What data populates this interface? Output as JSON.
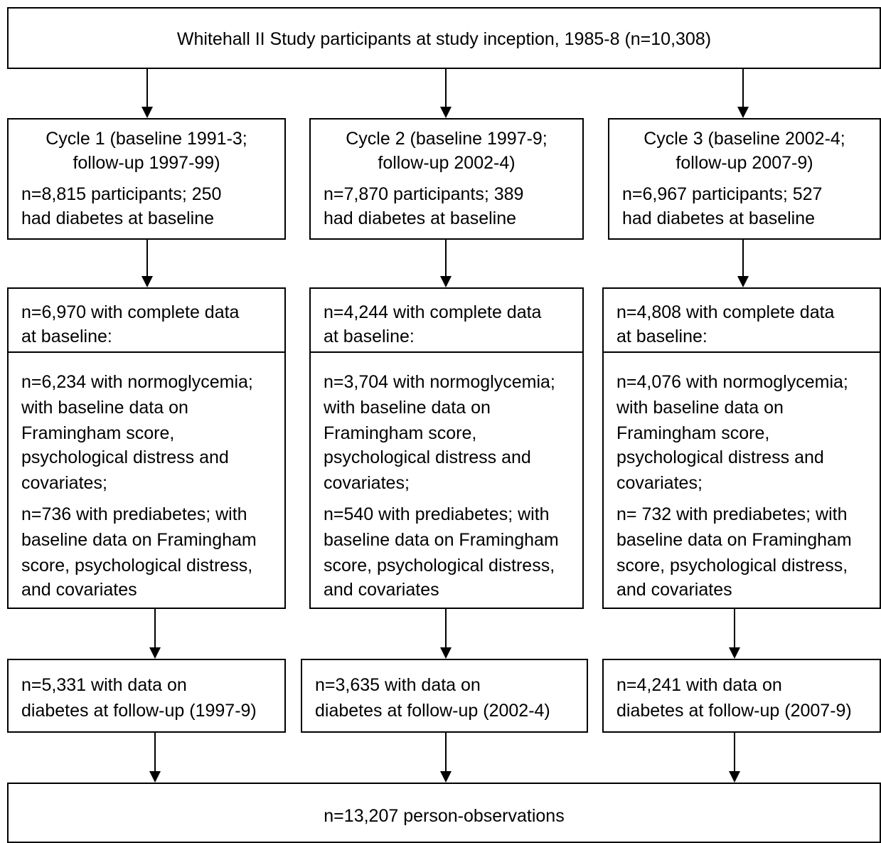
{
  "top": "Whitehall II Study participants at study inception, 1985-8 (n=10,308)",
  "columns": [
    {
      "cycle_l1": "Cycle 1 (baseline 1991-3;",
      "cycle_l2": "follow-up 1997-99)",
      "n_l1": "n=8,815 participants; 250",
      "n_l2": "had diabetes at baseline",
      "comp_l1": "n=6,970 with complete data",
      "comp_l2": "at baseline:",
      "normo_l1": "n=6,234 with normoglycemia;",
      "normo_l2": "with baseline data on",
      "normo_l3": "Framingham score,",
      "normo_l4": "psychological distress and",
      "normo_l5": "covariates;",
      "pre_l1": "n=736 with prediabetes; with",
      "pre_l2": "baseline data on Framingham",
      "pre_l3": "score, psychological distress,",
      "pre_l4": "and covariates",
      "fu_l1": "n=5,331 with data on",
      "fu_l2": "diabetes at follow-up (1997-9)"
    },
    {
      "cycle_l1": "Cycle 2 (baseline 1997-9;",
      "cycle_l2": "follow-up 2002-4)",
      "n_l1": "n=7,870 participants; 389",
      "n_l2": "had diabetes at baseline",
      "comp_l1": "n=4,244 with complete data",
      "comp_l2": "at baseline:",
      "normo_l1": "n=3,704 with normoglycemia;",
      "normo_l2": "with baseline data on",
      "normo_l3": "Framingham score,",
      "normo_l4": "psychological distress and",
      "normo_l5": "covariates;",
      "pre_l1": "n=540 with prediabetes; with",
      "pre_l2": "baseline data on Framingham",
      "pre_l3": "score, psychological distress,",
      "pre_l4": "and covariates",
      "fu_l1": "n=3,635 with data on",
      "fu_l2": "diabetes at follow-up (2002-4)"
    },
    {
      "cycle_l1": "Cycle 3 (baseline 2002-4;",
      "cycle_l2": "follow-up 2007-9)",
      "n_l1": "n=6,967 participants; 527",
      "n_l2": "had diabetes at baseline",
      "comp_l1": "n=4,808 with complete data",
      "comp_l2": "at baseline:",
      "normo_l1": "n=4,076 with normoglycemia;",
      "normo_l2": "with baseline data on",
      "normo_l3": "Framingham score,",
      "normo_l4": "psychological distress and",
      "normo_l5": "covariates;",
      "pre_l1": "n= 732 with prediabetes; with",
      "pre_l2": "baseline data on Framingham",
      "pre_l3": "score, psychological distress,",
      "pre_l4": "and covariates",
      "fu_l1": "n=4,241 with data on",
      "fu_l2": "diabetes at follow-up (2007-9)"
    }
  ],
  "bottom": "n=13,207 person-observations"
}
